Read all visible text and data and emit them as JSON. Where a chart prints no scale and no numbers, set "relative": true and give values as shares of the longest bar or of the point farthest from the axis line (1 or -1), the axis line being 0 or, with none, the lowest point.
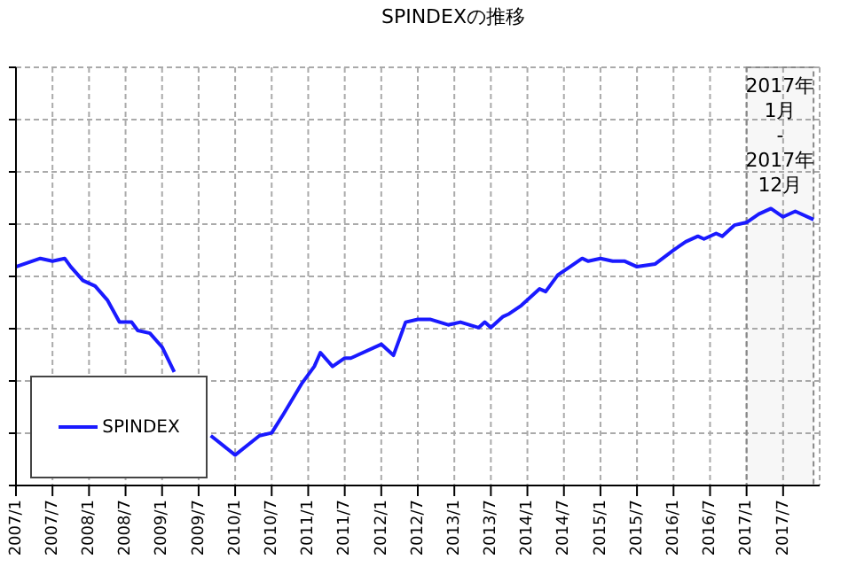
{
  "chart_data": {
    "type": "line",
    "title": "SPINDEXの推移",
    "relative": true,
    "grid": true,
    "legend": "bottom left",
    "marker": "none",
    "line_style": "solid",
    "x": [
      "2007-01",
      "2007-05",
      "2007-07",
      "2007-09",
      "2007-10",
      "2007-12",
      "2008-02",
      "2008-04",
      "2008-06",
      "2008-08",
      "2008-09",
      "2008-11",
      "2009-01",
      "2009-03",
      "2009-05",
      "2009-07",
      "2009-09",
      "2010-01",
      "2010-05",
      "2010-07",
      "2010-09",
      "2010-12",
      "2011-02",
      "2011-03",
      "2011-05",
      "2011-07",
      "2011-08",
      "2012-01",
      "2012-03",
      "2012-05",
      "2012-07",
      "2012-09",
      "2012-12",
      "2013-02",
      "2013-05",
      "2013-06",
      "2013-07",
      "2013-09",
      "2013-10",
      "2013-12",
      "2014-03",
      "2014-04",
      "2014-06",
      "2014-08",
      "2014-10",
      "2014-11",
      "2015-01",
      "2015-03",
      "2015-05",
      "2015-07",
      "2015-10",
      "2016-01",
      "2016-03",
      "2016-05",
      "2016-06",
      "2016-08",
      "2016-09",
      "2016-11",
      "2017-01",
      "2017-03",
      "2017-05",
      "2017-07",
      "2017-09",
      "2017-12"
    ],
    "series": [
      {
        "name": "SPINDEX",
        "color": "#1a1aff",
        "values": [
          0.79,
          0.82,
          0.81,
          0.82,
          0.79,
          0.74,
          0.72,
          0.67,
          0.59,
          0.59,
          0.56,
          0.55,
          0.5,
          0.41,
          null,
          null,
          0.18,
          0.11,
          0.18,
          0.19,
          0.26,
          0.37,
          0.43,
          0.48,
          0.43,
          0.46,
          0.46,
          0.51,
          0.47,
          0.59,
          0.6,
          0.6,
          0.58,
          0.59,
          0.57,
          0.59,
          0.57,
          0.61,
          0.62,
          0.65,
          0.71,
          0.7,
          0.76,
          0.79,
          0.82,
          0.81,
          0.82,
          0.81,
          0.81,
          0.79,
          0.8,
          0.85,
          0.88,
          0.9,
          0.89,
          0.91,
          0.9,
          0.94,
          0.95,
          0.98,
          1,
          0.97,
          0.99,
          0.96
        ]
      }
    ],
    "xlim": [
      "2007-01",
      "2018-01"
    ],
    "xticks": [
      {
        "value": "2007-01",
        "label": "2007/1"
      },
      {
        "value": "2007-07",
        "label": "2007/7"
      },
      {
        "value": "2008-01",
        "label": "2008/1"
      },
      {
        "value": "2008-07",
        "label": "2008/7"
      },
      {
        "value": "2009-01",
        "label": "2009/1"
      },
      {
        "value": "2009-07",
        "label": "2009/7"
      },
      {
        "value": "2010-01",
        "label": "2010/1"
      },
      {
        "value": "2010-07",
        "label": "2010/7"
      },
      {
        "value": "2011-01",
        "label": "2011/1"
      },
      {
        "value": "2011-07",
        "label": "2011/7"
      },
      {
        "value": "2012-01",
        "label": "2012/1"
      },
      {
        "value": "2012-07",
        "label": "2012/7"
      },
      {
        "value": "2013-01",
        "label": "2013/1"
      },
      {
        "value": "2013-07",
        "label": "2013/7"
      },
      {
        "value": "2014-01",
        "label": "2014/1"
      },
      {
        "value": "2014-07",
        "label": "2014/7"
      },
      {
        "value": "2015-01",
        "label": "2015/1"
      },
      {
        "value": "2015-07",
        "label": "2015/7"
      },
      {
        "value": "2016-01",
        "label": "2016/1"
      },
      {
        "value": "2016-07",
        "label": "2016/7"
      },
      {
        "value": "2017-01",
        "label": "2017/1"
      },
      {
        "value": "2017-07",
        "label": "2017/7"
      }
    ],
    "bands": [
      {
        "axis": "x",
        "from": "2017-01",
        "to": "2017-12",
        "label": "2017年\n1月\n-\n2017年\n12月"
      }
    ]
  }
}
